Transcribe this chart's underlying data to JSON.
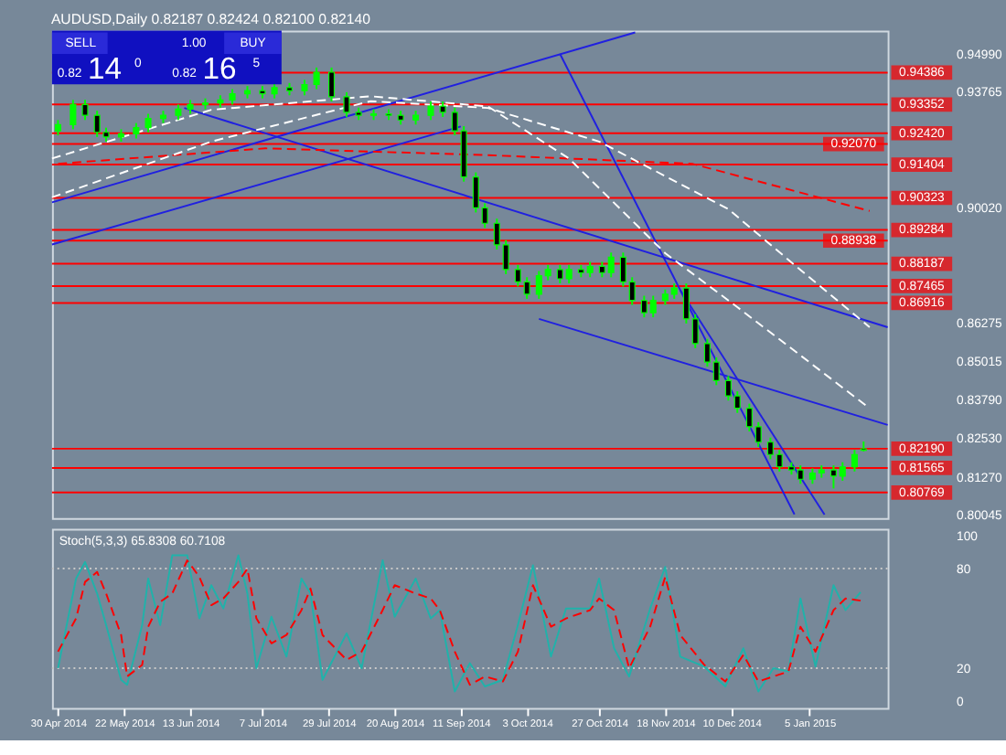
{
  "chart_data": [
    {
      "type": "candlestick",
      "title": "AUDUSD,Daily 0.82187 0.82424 0.82100 0.82140",
      "tick_labels": "y",
      "annotations": [
        "SELL",
        "1.00",
        "BUY",
        "0.82",
        "14",
        "0",
        "0.82",
        "16",
        "5"
      ],
      "xlim": [
        "2014-04-28",
        "2015-01-31"
      ],
      "ylim": [
        0.7994,
        0.9575
      ],
      "yticks": [
        {
          "value": 0.9499,
          "label": "0.94990"
        },
        {
          "value": 0.93765,
          "label": "0.93765"
        },
        {
          "value": 0.9002,
          "label": "0.90020"
        },
        {
          "value": 0.86275,
          "label": "0.86275"
        },
        {
          "value": 0.85015,
          "label": "0.85015"
        },
        {
          "value": 0.8379,
          "label": "0.83790"
        },
        {
          "value": 0.8253,
          "label": "0.82530"
        },
        {
          "value": 0.8127,
          "label": "0.81270"
        },
        {
          "value": 0.80045,
          "label": "0.80045"
        }
      ],
      "x": [
        "2014-04-30",
        "2014-05-05",
        "2014-05-09",
        "2014-05-13",
        "2014-05-16",
        "2014-05-21",
        "2014-05-26",
        "2014-05-30",
        "2014-06-04",
        "2014-06-09",
        "2014-06-13",
        "2014-06-18",
        "2014-06-23",
        "2014-06-27",
        "2014-07-02",
        "2014-07-07",
        "2014-07-11",
        "2014-07-16",
        "2014-07-21",
        "2014-07-25",
        "2014-07-30",
        "2014-08-04",
        "2014-08-08",
        "2014-08-13",
        "2014-08-18",
        "2014-08-22",
        "2014-08-27",
        "2014-09-01",
        "2014-09-05",
        "2014-09-09",
        "2014-09-12",
        "2014-09-16",
        "2014-09-19",
        "2014-09-23",
        "2014-09-26",
        "2014-09-30",
        "2014-10-03",
        "2014-10-07",
        "2014-10-10",
        "2014-10-14",
        "2014-10-17",
        "2014-10-21",
        "2014-10-24",
        "2014-10-28",
        "2014-10-31",
        "2014-11-04",
        "2014-11-07",
        "2014-11-11",
        "2014-11-14",
        "2014-11-18",
        "2014-11-21",
        "2014-11-25",
        "2014-11-28",
        "2014-12-02",
        "2014-12-05",
        "2014-12-09",
        "2014-12-12",
        "2014-12-16",
        "2014-12-19",
        "2014-12-23",
        "2014-12-26",
        "2014-12-30",
        "2015-01-02",
        "2015-01-06",
        "2015-01-09",
        "2015-01-13",
        "2015-01-16",
        "2015-01-20",
        "2015-01-23"
      ],
      "ohlc": [
        [
          0.925,
          0.9285,
          0.9235,
          0.927
        ],
        [
          0.927,
          0.935,
          0.9255,
          0.9335
        ],
        [
          0.9335,
          0.935,
          0.9285,
          0.93
        ],
        [
          0.93,
          0.9315,
          0.923,
          0.9245
        ],
        [
          0.9245,
          0.926,
          0.9215,
          0.923
        ],
        [
          0.923,
          0.9255,
          0.9215,
          0.924
        ],
        [
          0.924,
          0.9275,
          0.9225,
          0.926
        ],
        [
          0.926,
          0.9305,
          0.9245,
          0.929
        ],
        [
          0.929,
          0.9315,
          0.9275,
          0.93
        ],
        [
          0.93,
          0.9335,
          0.9285,
          0.932
        ],
        [
          0.932,
          0.935,
          0.9305,
          0.9335
        ],
        [
          0.9335,
          0.9355,
          0.932,
          0.934
        ],
        [
          0.934,
          0.9365,
          0.9325,
          0.935
        ],
        [
          0.935,
          0.9385,
          0.9335,
          0.937
        ],
        [
          0.937,
          0.9395,
          0.9355,
          0.938
        ],
        [
          0.938,
          0.9395,
          0.9355,
          0.937
        ],
        [
          0.937,
          0.9405,
          0.9355,
          0.939
        ],
        [
          0.939,
          0.9405,
          0.9365,
          0.938
        ],
        [
          0.938,
          0.9415,
          0.9365,
          0.94
        ],
        [
          0.94,
          0.9455,
          0.9385,
          0.944
        ],
        [
          0.944,
          0.9455,
          0.9345,
          0.936
        ],
        [
          0.936,
          0.9375,
          0.9295,
          0.931
        ],
        [
          0.931,
          0.9325,
          0.9285,
          0.93
        ],
        [
          0.93,
          0.932,
          0.9285,
          0.9305
        ],
        [
          0.9305,
          0.932,
          0.9285,
          0.93
        ],
        [
          0.93,
          0.9315,
          0.927,
          0.9285
        ],
        [
          0.9285,
          0.9315,
          0.927,
          0.93
        ],
        [
          0.93,
          0.9345,
          0.9285,
          0.933
        ],
        [
          0.933,
          0.9345,
          0.9295,
          0.931
        ],
        [
          0.931,
          0.9325,
          0.9235,
          0.925
        ],
        [
          0.925,
          0.9265,
          0.9085,
          0.91
        ],
        [
          0.91,
          0.9115,
          0.8985,
          0.9
        ],
        [
          0.9,
          0.9015,
          0.8935,
          0.895
        ],
        [
          0.895,
          0.8965,
          0.8865,
          0.888
        ],
        [
          0.888,
          0.8895,
          0.8785,
          0.88
        ],
        [
          0.88,
          0.8815,
          0.8745,
          0.876
        ],
        [
          0.876,
          0.8775,
          0.8705,
          0.872
        ],
        [
          0.872,
          0.8795,
          0.8705,
          0.878
        ],
        [
          0.878,
          0.8815,
          0.8765,
          0.88
        ],
        [
          0.88,
          0.8815,
          0.8755,
          0.877
        ],
        [
          0.877,
          0.8815,
          0.8755,
          0.88
        ],
        [
          0.88,
          0.8815,
          0.8775,
          0.879
        ],
        [
          0.879,
          0.8825,
          0.8775,
          0.881
        ],
        [
          0.881,
          0.8825,
          0.8775,
          0.879
        ],
        [
          0.879,
          0.8855,
          0.8775,
          0.884
        ],
        [
          0.884,
          0.8855,
          0.8745,
          0.876
        ],
        [
          0.876,
          0.8775,
          0.8685,
          0.87
        ],
        [
          0.87,
          0.8715,
          0.8645,
          0.866
        ],
        [
          0.866,
          0.8715,
          0.8645,
          0.87
        ],
        [
          0.87,
          0.8735,
          0.8685,
          0.872
        ],
        [
          0.872,
          0.8755,
          0.8705,
          0.874
        ],
        [
          0.874,
          0.8755,
          0.8625,
          0.864
        ],
        [
          0.864,
          0.8655,
          0.8545,
          0.856
        ],
        [
          0.856,
          0.8575,
          0.8485,
          0.85
        ],
        [
          0.85,
          0.8515,
          0.8425,
          0.844
        ],
        [
          0.844,
          0.8455,
          0.8375,
          0.839
        ],
        [
          0.839,
          0.8405,
          0.8335,
          0.835
        ],
        [
          0.835,
          0.8365,
          0.8275,
          0.829
        ],
        [
          0.829,
          0.8305,
          0.8225,
          0.824
        ],
        [
          0.824,
          0.8255,
          0.8185,
          0.82
        ],
        [
          0.82,
          0.8215,
          0.8145,
          0.816
        ],
        [
          0.816,
          0.8175,
          0.8135,
          0.815
        ],
        [
          0.815,
          0.8165,
          0.8105,
          0.812
        ],
        [
          0.812,
          0.8155,
          0.8105,
          0.814
        ],
        [
          0.814,
          0.8165,
          0.8125,
          0.815
        ],
        [
          0.815,
          0.8165,
          0.809,
          0.813
        ],
        [
          0.813,
          0.8175,
          0.8115,
          0.816
        ],
        [
          0.816,
          0.8215,
          0.8145,
          0.82
        ],
        [
          0.82187,
          0.82424,
          0.821,
          0.8214
        ]
      ],
      "series": [
        {
          "type": "line",
          "color": "#2020e0",
          "x": [
            "2014-04-28",
            "2014-11-08"
          ],
          "values": [
            0.9018,
            0.9569
          ]
        },
        {
          "type": "line",
          "color": "#2020e0",
          "x": [
            "2014-04-28",
            "2014-09-11"
          ],
          "values": [
            0.8881,
            0.9264
          ]
        },
        {
          "type": "line",
          "color": "#2020e0",
          "x": [
            "2014-06-11",
            "2015-01-31"
          ],
          "values": [
            0.9324,
            0.8613
          ]
        },
        {
          "type": "line",
          "color": "#2020e0",
          "x": [
            "2014-10-07",
            "2015-01-31"
          ],
          "values": [
            0.864,
            0.8296
          ]
        },
        {
          "type": "line",
          "color": "#2020e0",
          "x": [
            "2014-10-14",
            "2014-12-31"
          ],
          "values": [
            0.9499,
            0.8006
          ]
        },
        {
          "type": "line",
          "color": "#2020e0",
          "x": [
            "2014-11-23",
            "2015-01-10"
          ],
          "values": [
            0.8733,
            0.8005
          ]
        },
        {
          "type": "line",
          "color": "#ff0000",
          "line_style": "dashed",
          "x": [
            "2014-04-30",
            "2014-07-08",
            "2014-09-20",
            "2014-11-27",
            "2015-01-25"
          ],
          "values": [
            0.9143,
            0.9193,
            0.9171,
            0.9143,
            0.899
          ]
        },
        {
          "type": "line",
          "color": "#ffffff",
          "line_style": "dashed",
          "x": [
            "2014-04-28",
            "2014-06-20",
            "2014-08-12",
            "2014-09-20",
            "2014-10-27",
            "2014-12-09",
            "2014-12-31",
            "2015-01-25"
          ],
          "values": [
            0.9034,
            0.9215,
            0.9346,
            0.9324,
            0.9215,
            0.8996,
            0.8815,
            0.8613
          ]
        },
        {
          "type": "line",
          "color": "#ffffff",
          "line_style": "dashed",
          "x": [
            "2014-04-28",
            "2014-06-20",
            "2014-08-12",
            "2014-09-20",
            "2014-10-17",
            "2014-11-18",
            "2014-12-12",
            "2015-01-25"
          ],
          "values": [
            0.916,
            0.9318,
            0.9362,
            0.9329,
            0.916,
            0.8853,
            0.8678,
            0.835
          ]
        }
      ],
      "ref_lines": [
        {
          "axis": "y",
          "value": 0.94386,
          "label": "0.94386",
          "color": "#ff0000"
        },
        {
          "axis": "y",
          "value": 0.93352,
          "label": "0.93352",
          "color": "#ff0000"
        },
        {
          "axis": "y",
          "value": 0.9242,
          "label": "0.92420",
          "color": "#ff0000"
        },
        {
          "axis": "y",
          "value": 0.9207,
          "label": "0.92070",
          "color": "#ff0000"
        },
        {
          "axis": "y",
          "value": 0.91404,
          "label": "0.91404",
          "color": "#ff0000"
        },
        {
          "axis": "y",
          "value": 0.90323,
          "label": "0.90323",
          "color": "#ff0000"
        },
        {
          "axis": "y",
          "value": 0.89284,
          "label": "0.89284",
          "color": "#ff0000"
        },
        {
          "axis": "y",
          "value": 0.88938,
          "label": "0.88938",
          "color": "#ff0000"
        },
        {
          "axis": "y",
          "value": 0.88187,
          "label": "0.88187",
          "color": "#ff0000"
        },
        {
          "axis": "y",
          "value": 0.87465,
          "label": "0.87465",
          "color": "#ff0000"
        },
        {
          "axis": "y",
          "value": 0.86916,
          "label": "0.86916",
          "color": "#ff0000"
        },
        {
          "axis": "y",
          "value": 0.8219,
          "label": "0.82190",
          "color": "#ff0000"
        },
        {
          "axis": "y",
          "value": 0.81565,
          "label": "0.81565",
          "color": "#ff0000"
        },
        {
          "axis": "y",
          "value": 0.80769,
          "label": "0.80769",
          "color": "#ff0000"
        }
      ]
    },
    {
      "type": "line",
      "title": "Stoch(5,3,3) 65.8308 60.7108",
      "xlim": [
        "2014-04-28",
        "2015-01-31"
      ],
      "xticks": [
        {
          "value": "2014-04-30",
          "label": "30 Apr 2014"
        },
        {
          "value": "2014-05-22",
          "label": "22 May 2014"
        },
        {
          "value": "2014-06-13",
          "label": "13 Jun 2014"
        },
        {
          "value": "2014-07-07",
          "label": "7 Jul 2014"
        },
        {
          "value": "2014-07-29",
          "label": "29 Jul 2014"
        },
        {
          "value": "2014-08-20",
          "label": "20 Aug 2014"
        },
        {
          "value": "2014-09-11",
          "label": "11 Sep 2014"
        },
        {
          "value": "2014-10-03",
          "label": "3 Oct 2014"
        },
        {
          "value": "2014-10-27",
          "label": "27 Oct 2014"
        },
        {
          "value": "2014-11-18",
          "label": "18 Nov 2014"
        },
        {
          "value": "2014-12-10",
          "label": "10 Dec 2014"
        },
        {
          "value": "2015-01-05",
          "label": "5 Jan 2015"
        }
      ],
      "ylim": [
        -4,
        104
      ],
      "yticks": [
        0,
        20,
        80,
        100
      ],
      "ref_lines": [
        {
          "axis": "y",
          "value": 20,
          "color": "#c8c8c8",
          "line_style": "dotted"
        },
        {
          "axis": "y",
          "value": 80,
          "color": "#c8c8c8",
          "line_style": "dotted"
        }
      ],
      "x": [
        "2014-04-30",
        "2014-05-06",
        "2014-05-09",
        "2014-05-13",
        "2014-05-16",
        "2014-05-21",
        "2014-05-23",
        "2014-05-28",
        "2014-05-30",
        "2014-06-03",
        "2014-06-07",
        "2014-06-12",
        "2014-06-16",
        "2014-06-20",
        "2014-06-24",
        "2014-06-29",
        "2014-07-02",
        "2014-07-05",
        "2014-07-10",
        "2014-07-15",
        "2014-07-20",
        "2014-07-23",
        "2014-07-27",
        "2014-08-04",
        "2014-08-09",
        "2014-08-16",
        "2014-08-20",
        "2014-08-27",
        "2014-09-01",
        "2014-09-04",
        "2014-09-09",
        "2014-09-14",
        "2014-09-19",
        "2014-09-25",
        "2014-09-30",
        "2014-10-05",
        "2014-10-11",
        "2014-10-16",
        "2014-10-24",
        "2014-10-27",
        "2014-11-01",
        "2014-11-06",
        "2014-11-13",
        "2014-11-18",
        "2014-11-23",
        "2014-12-01",
        "2014-12-08",
        "2014-12-14",
        "2014-12-19",
        "2014-12-24",
        "2014-12-29",
        "2015-01-02",
        "2015-01-07",
        "2015-01-13",
        "2015-01-17",
        "2015-01-22"
      ],
      "series": [
        {
          "color": "#20b2aa",
          "values": [
            20,
            74,
            84,
            65,
            46,
            13,
            10,
            46,
            74,
            46,
            88,
            88,
            50,
            70,
            56,
            88,
            65,
            20,
            51,
            27,
            74,
            65,
            13,
            41,
            20,
            85,
            51,
            74,
            50,
            55,
            6,
            23,
            9,
            13,
            46,
            82,
            27,
            56,
            56,
            74,
            32,
            15,
            56,
            81,
            27,
            21,
            9,
            32,
            6,
            20,
            18,
            62,
            21,
            70,
            55,
            65.8308
          ]
        },
        {
          "color": "#ff0000",
          "line_style": "dashed",
          "values": [
            30,
            50,
            72,
            78,
            65,
            40,
            15,
            22,
            45,
            60,
            65,
            85,
            75,
            58,
            62,
            72,
            80,
            50,
            35,
            40,
            55,
            68,
            40,
            25,
            30,
            55,
            70,
            65,
            62,
            55,
            30,
            10,
            15,
            12,
            30,
            70,
            45,
            50,
            55,
            62,
            55,
            20,
            45,
            75,
            40,
            22,
            12,
            28,
            12,
            15,
            18,
            45,
            30,
            55,
            62,
            60.7108
          ]
        }
      ]
    }
  ]
}
